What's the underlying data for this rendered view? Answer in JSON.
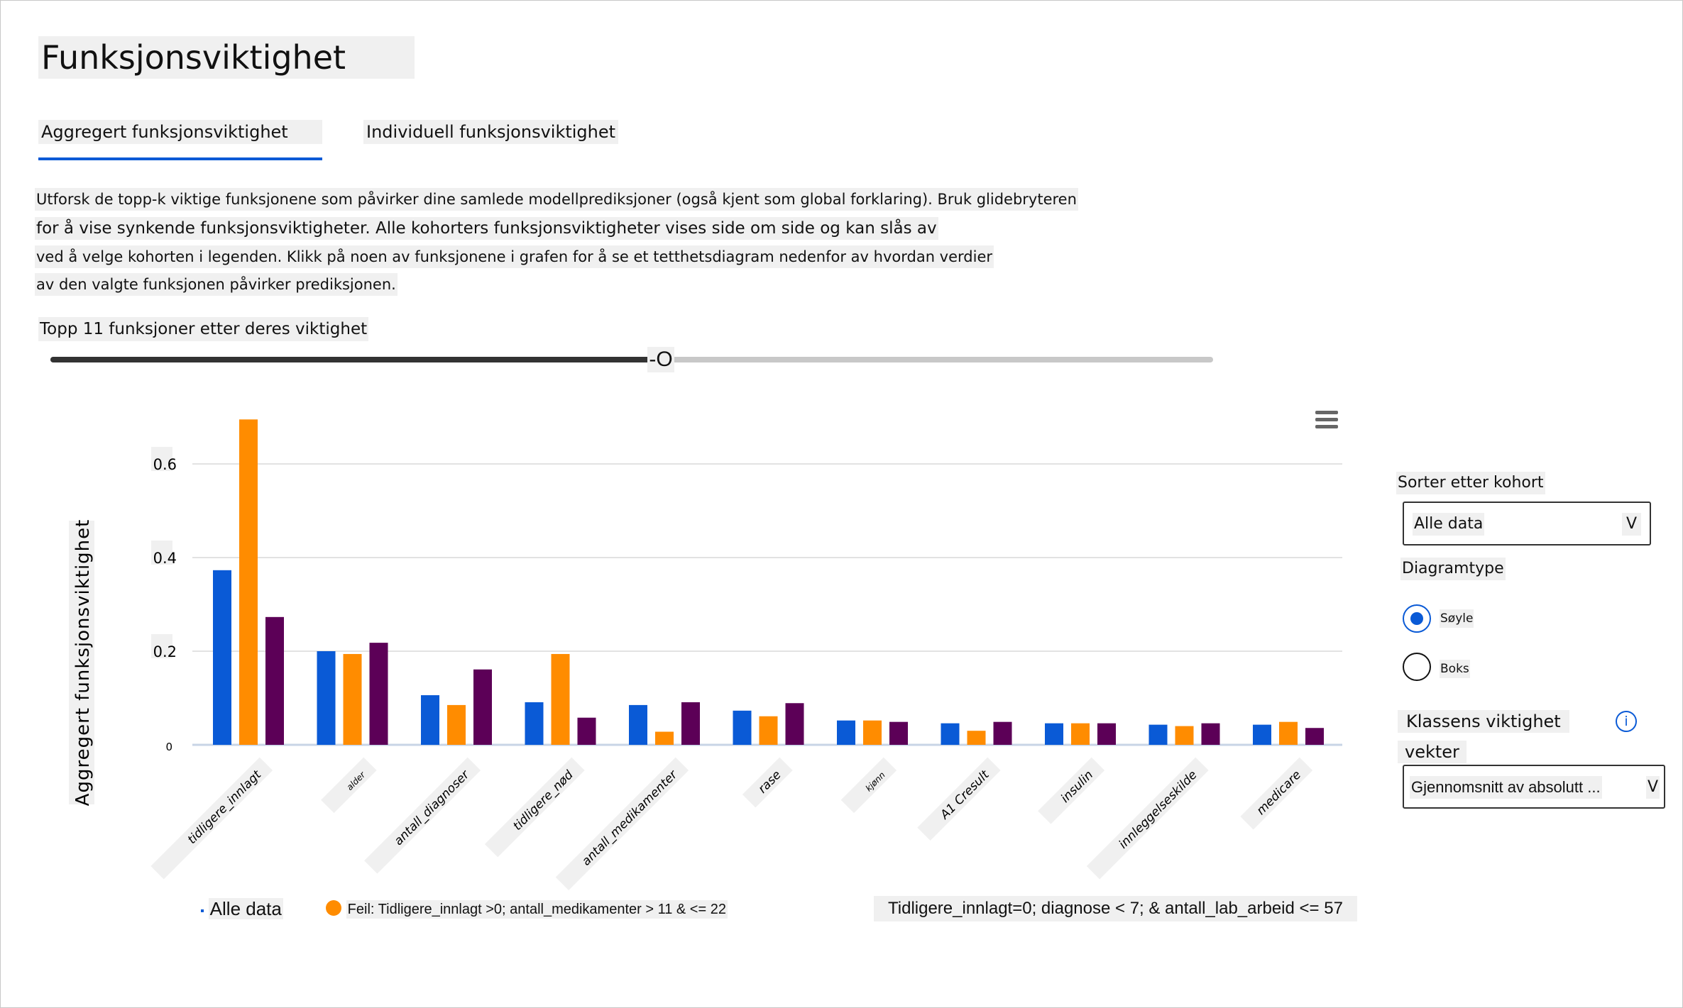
{
  "header": {
    "title": "Funksjonsviktighet"
  },
  "tabs": [
    {
      "label": "Aggregert funksjonsviktighet",
      "active": true
    },
    {
      "label": "Individuell funksjonsviktighet",
      "active": false
    }
  ],
  "description": [
    "Utforsk de topp-k viktige funksjonene som påvirker dine samlede modellprediksjoner (også kjent som global forklaring). Bruk glidebryteren",
    "for å vise synkende funksjonsviktigheter. Alle kohorters funksjonsviktigheter vises side om side og kan slås av",
    "ved å velge kohorten i legenden. Klikk på noen av funksjonene i grafen for å se et tetthetsdiagram nedenfor av hvordan verdier",
    "av den valgte funksjonen påvirker prediksjonen."
  ],
  "slider": {
    "label": "Topp 11 funksjoner etter deres viktighet",
    "value": 11,
    "fraction": 0.51,
    "thumb_text": "-O"
  },
  "controls": {
    "sort_label": "Sorter etter kohort",
    "sort_value": "Alle data",
    "chevron": "V",
    "chart_type_label": "Diagramtype",
    "chart_types": [
      {
        "label": "Søyle",
        "selected": true
      },
      {
        "label": "Boks",
        "selected": false
      }
    ],
    "class_weight_label_1": "Klassens viktighet",
    "class_weight_label_2": "vekter",
    "info_icon": "i",
    "class_weight_value": "Gjennomsnitt av absolutt ..."
  },
  "chart_data": {
    "type": "bar",
    "ylabel": "Aggregert funksjonsviktighet",
    "ylim": [
      0,
      0.72
    ],
    "yticks": [
      {
        "v": 0,
        "label": "0"
      },
      {
        "v": 0.2,
        "label": "0.2"
      },
      {
        "v": 0.4,
        "label": "0.4"
      },
      {
        "v": 0.6,
        "label": "0.6"
      }
    ],
    "categories": [
      "tidligere_innlagt",
      "alder",
      "antall_diagnoser",
      "tidligere_nød",
      "antall_medikamenter",
      "rase",
      "kjønn",
      "A1 Cresult",
      "insulin",
      "innleggelseskilde",
      "medicare"
    ],
    "series": [
      {
        "name": "Alle data",
        "color": "#0a5ad6",
        "values": [
          0.373,
          0.2,
          0.106,
          0.091,
          0.085,
          0.073,
          0.052,
          0.046,
          0.046,
          0.043,
          0.043
        ]
      },
      {
        "name": "Feil: Tidligere_innlagt >0; antall_medikamenter > 11 & <= 22",
        "color": "#ff8c00",
        "values": [
          0.695,
          0.194,
          0.085,
          0.194,
          0.028,
          0.061,
          0.052,
          0.03,
          0.046,
          0.04,
          0.049
        ]
      },
      {
        "name": "Tidligere_innlagt=0; diagnose < 7; & antall_lab_arbeid <= 57",
        "color": "#5c0057",
        "values": [
          0.273,
          0.218,
          0.161,
          0.058,
          0.091,
          0.089,
          0.049,
          0.049,
          0.046,
          0.046,
          0.036
        ]
      }
    ],
    "grid": true,
    "legend": "bottom"
  }
}
